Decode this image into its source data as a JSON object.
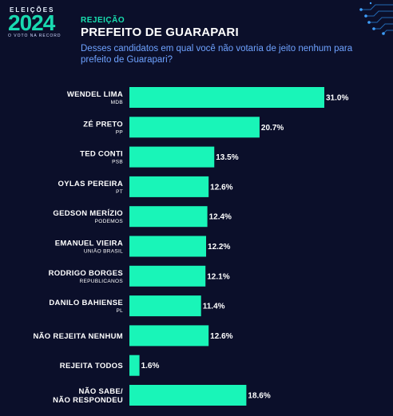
{
  "logo": {
    "top_text": "ELEIÇÕES",
    "year": "2024",
    "sub_text": "O VOTO NA RECORD"
  },
  "header": {
    "kicker": "REJEIÇÃO",
    "title": "PREFEITO DE GUARAPARI",
    "question": "Desses candidatos em qual você não votaria de jeito nenhum para prefeito de Guarapari?"
  },
  "colors": {
    "background": "#0b0f2a",
    "bar": "#19f5b8",
    "kicker": "#19e0b0",
    "question": "#6ea2ff"
  },
  "chart_data": {
    "type": "bar",
    "orientation": "horizontal",
    "categories": [
      {
        "name": "WENDEL LIMA",
        "party": "MDB"
      },
      {
        "name": "ZÉ PRETO",
        "party": "PP"
      },
      {
        "name": "TED CONTI",
        "party": "PSB"
      },
      {
        "name": "OYLAS PEREIRA",
        "party": "PT"
      },
      {
        "name": "GEDSON MERÍZIO",
        "party": "PODEMOS"
      },
      {
        "name": "EMANUEL VIEIRA",
        "party": "UNIÃO BRASIL"
      },
      {
        "name": "RODRIGO BORGES",
        "party": "REPUBLICANOS"
      },
      {
        "name": "DANILO BAHIENSE",
        "party": "PL"
      },
      {
        "name": "NÃO REJEITA NENHUM",
        "party": ""
      },
      {
        "name": "REJEITA TODOS",
        "party": ""
      },
      {
        "name": "NÃO SABE/\nNÃO RESPONDEU",
        "party": ""
      }
    ],
    "values": [
      31.0,
      20.7,
      13.5,
      12.6,
      12.4,
      12.2,
      12.1,
      11.4,
      12.6,
      1.6,
      18.6
    ],
    "value_labels": [
      "31.0%",
      "20.7%",
      "13.5%",
      "12.6%",
      "12.4%",
      "12.2%",
      "12.1%",
      "11.4%",
      "12.6%",
      "1.6%",
      "18.6%"
    ],
    "xlim": [
      0,
      31.0
    ],
    "grid": false,
    "legend": "none"
  }
}
